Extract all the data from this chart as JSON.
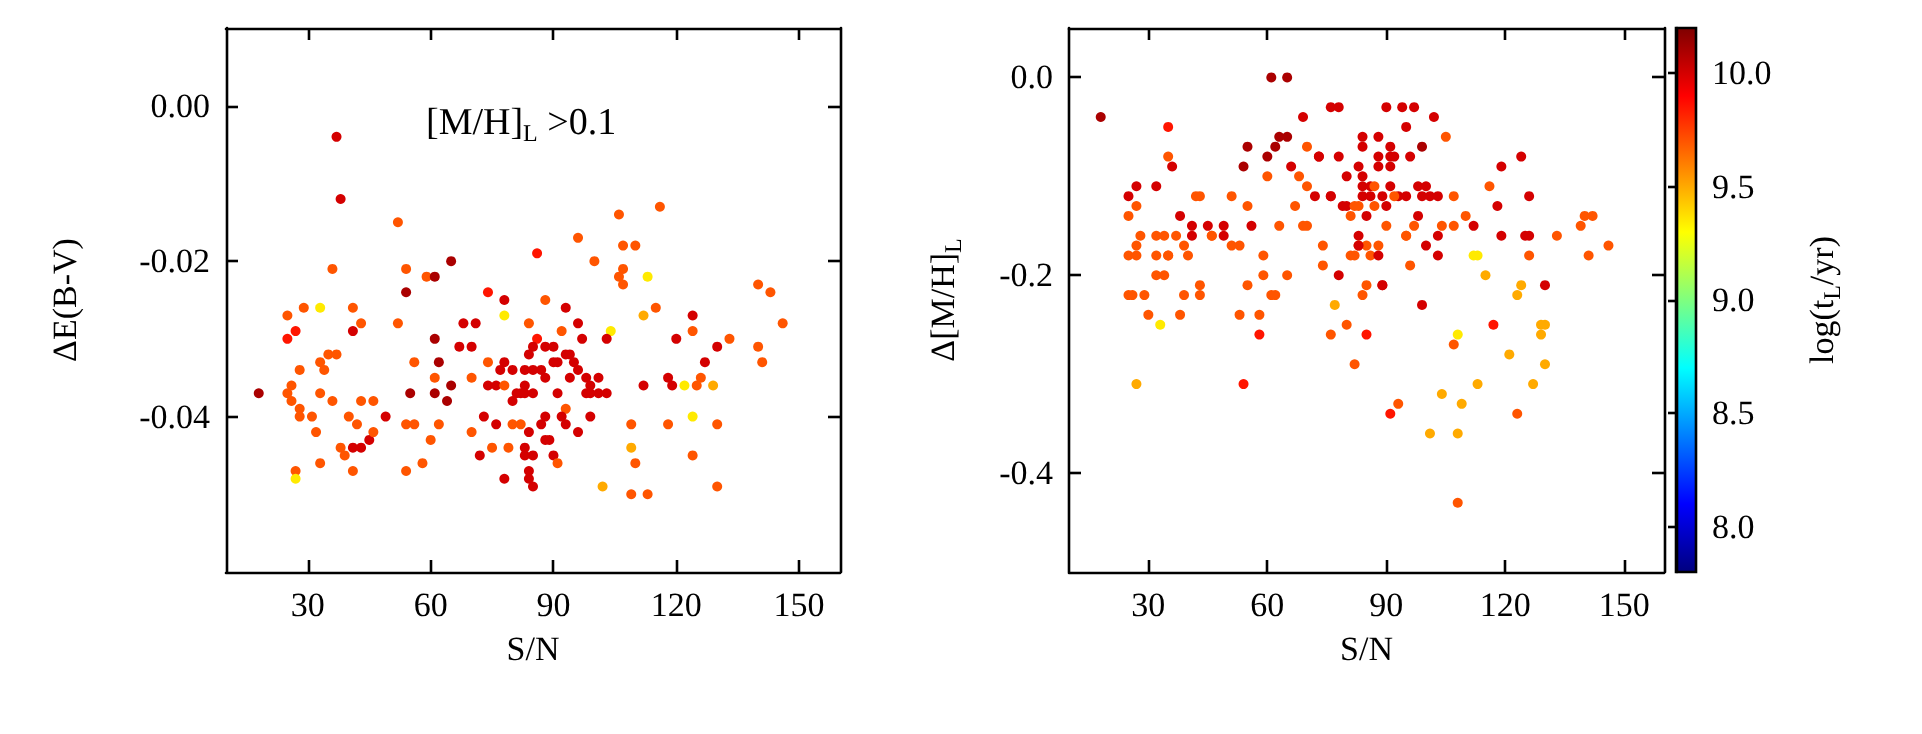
{
  "chart_data": [
    {
      "type": "scatter",
      "xlabel": "S/N",
      "ylabel": "ΔE(B-V)",
      "annotations": [
        "[M/H]$_{L}$ >0.1"
      ],
      "marker": "circle",
      "xlim": [
        10,
        160
      ],
      "xticks": [
        30,
        60,
        90,
        120,
        150
      ],
      "ylim": [
        -0.06,
        0.01
      ],
      "yticks": [
        {
          "value": -0.04,
          "label": "-0.04"
        },
        {
          "value": -0.02,
          "label": "-0.02"
        },
        {
          "value": 0,
          "label": "0.00"
        }
      ],
      "x": [
        37,
        38,
        52,
        36,
        54,
        54,
        59,
        61,
        65,
        86,
        96,
        106,
        116,
        107,
        110,
        100,
        107,
        106,
        113,
        107,
        74,
        78,
        88,
        93,
        115,
        112,
        124,
        140,
        143,
        146,
        133,
        140,
        141,
        130,
        127,
        124,
        120,
        104,
        103,
        25,
        29,
        33,
        41,
        43,
        41,
        25,
        27,
        28,
        33,
        34,
        35,
        37,
        52,
        56,
        61,
        62,
        65,
        64,
        55,
        18,
        26,
        25,
        26,
        28,
        33,
        36,
        28,
        31,
        40,
        42,
        43,
        46,
        49,
        32,
        38,
        39,
        41,
        43,
        45,
        46,
        33,
        41,
        27,
        27,
        54,
        56,
        58,
        54,
        60,
        62,
        61,
        61,
        68,
        71,
        70,
        67,
        74,
        70,
        74,
        76,
        77,
        78,
        80,
        78,
        84,
        86,
        85,
        84,
        88,
        90,
        92,
        96,
        97,
        94,
        91,
        93,
        95,
        83,
        85,
        87,
        88,
        90,
        94,
        96,
        98,
        101,
        99,
        99,
        101,
        103,
        98,
        91,
        93,
        88,
        87,
        92,
        93,
        99,
        81,
        82,
        83,
        85,
        83,
        80,
        78,
        73,
        76,
        80,
        82,
        84,
        70,
        75,
        79,
        83,
        83,
        85,
        72,
        88,
        89,
        90,
        96,
        91,
        84,
        84,
        85,
        78,
        102,
        109,
        109,
        110,
        109,
        113,
        112,
        118,
        119,
        122,
        125,
        126,
        129,
        124,
        130,
        118,
        124,
        130
      ],
      "values": [
        -0.004,
        -0.012,
        -0.015,
        -0.021,
        -0.021,
        -0.024,
        -0.022,
        -0.022,
        -0.02,
        -0.019,
        -0.017,
        -0.014,
        -0.013,
        -0.018,
        -0.018,
        -0.02,
        -0.021,
        -0.022,
        -0.022,
        -0.023,
        -0.024,
        -0.025,
        -0.025,
        -0.026,
        -0.026,
        -0.027,
        -0.027,
        -0.023,
        -0.024,
        -0.028,
        -0.03,
        -0.031,
        -0.033,
        -0.031,
        -0.033,
        -0.029,
        -0.03,
        -0.029,
        -0.03,
        -0.027,
        -0.026,
        -0.026,
        -0.026,
        -0.028,
        -0.029,
        -0.03,
        -0.029,
        -0.034,
        -0.033,
        -0.034,
        -0.032,
        -0.032,
        -0.028,
        -0.033,
        -0.03,
        -0.033,
        -0.036,
        -0.038,
        -0.037,
        -0.037,
        -0.036,
        -0.037,
        -0.038,
        -0.039,
        -0.037,
        -0.038,
        -0.04,
        -0.04,
        -0.04,
        -0.041,
        -0.038,
        -0.038,
        -0.04,
        -0.042,
        -0.044,
        -0.045,
        -0.044,
        -0.044,
        -0.043,
        -0.042,
        -0.046,
        -0.047,
        -0.047,
        -0.048,
        -0.041,
        -0.041,
        -0.046,
        -0.047,
        -0.043,
        -0.041,
        -0.035,
        -0.037,
        -0.028,
        -0.028,
        -0.031,
        -0.031,
        -0.033,
        -0.035,
        -0.036,
        -0.036,
        -0.034,
        -0.033,
        -0.034,
        -0.027,
        -0.028,
        -0.03,
        -0.031,
        -0.032,
        -0.031,
        -0.031,
        -0.029,
        -0.028,
        -0.03,
        -0.032,
        -0.033,
        -0.032,
        -0.033,
        -0.034,
        -0.034,
        -0.034,
        -0.035,
        -0.033,
        -0.035,
        -0.034,
        -0.035,
        -0.035,
        -0.036,
        -0.037,
        -0.037,
        -0.037,
        -0.037,
        -0.037,
        -0.039,
        -0.04,
        -0.041,
        -0.04,
        -0.041,
        -0.04,
        -0.037,
        -0.037,
        -0.037,
        -0.037,
        -0.036,
        -0.038,
        -0.036,
        -0.04,
        -0.041,
        -0.041,
        -0.041,
        -0.042,
        -0.042,
        -0.044,
        -0.044,
        -0.044,
        -0.045,
        -0.045,
        -0.045,
        -0.043,
        -0.043,
        -0.045,
        -0.042,
        -0.046,
        -0.047,
        -0.048,
        -0.049,
        -0.048,
        -0.049,
        -0.041,
        -0.044,
        -0.046,
        -0.05,
        -0.05,
        -0.036,
        -0.035,
        -0.036,
        -0.036,
        -0.036,
        -0.035,
        -0.036,
        -0.04,
        -0.041,
        -0.041,
        -0.045,
        -0.049
      ],
      "colors": [
        "#d40000",
        "#d40000",
        "#ff5500",
        "#ff5500",
        "#ff5500",
        "#aa0000",
        "#ff5500",
        "#aa0000",
        "#aa0000",
        "#ff1500",
        "#ff5500",
        "#ff5500",
        "#ff5500",
        "#ff5500",
        "#ff5500",
        "#ff5500",
        "#ff5500",
        "#ff5500",
        "#ffea00",
        "#ff5500",
        "#ff1500",
        "#d40000",
        "#ff5500",
        "#d40000",
        "#ff5500",
        "#ffaa00",
        "#d40000",
        "#ff5500",
        "#ff5500",
        "#ff5500",
        "#ff5500",
        "#ff5500",
        "#ff5500",
        "#d40000",
        "#d40000",
        "#ff5500",
        "#d40000",
        "#ffea00",
        "#d40000",
        "#ff5500",
        "#ff5500",
        "#ffea00",
        "#ff5500",
        "#ff5500",
        "#d40000",
        "#ff1500",
        "#ff1500",
        "#ff5500",
        "#ff5500",
        "#ff5500",
        "#ff5500",
        "#ff5500",
        "#ff5500",
        "#ff5500",
        "#aa0000",
        "#aa0000",
        "#aa0000",
        "#aa0000",
        "#aa0000",
        "#aa0000",
        "#ff5500",
        "#ff5500",
        "#ff5500",
        "#ff5500",
        "#ff5500",
        "#ff5500",
        "#ff5500",
        "#ff5500",
        "#ff5500",
        "#ff5500",
        "#ff5500",
        "#ff5500",
        "#d40000",
        "#ff5500",
        "#ff5500",
        "#ff5500",
        "#d40000",
        "#d40000",
        "#d40000",
        "#ff5500",
        "#ff5500",
        "#ff5500",
        "#ff5500",
        "#ffea00",
        "#ff5500",
        "#ff5500",
        "#ff5500",
        "#ff5500",
        "#ff5500",
        "#ff5500",
        "#ff5500",
        "#aa0000",
        "#d40000",
        "#d40000",
        "#d40000",
        "#d40000",
        "#ff5500",
        "#ff5500",
        "#d40000",
        "#d40000",
        "#d40000",
        "#d40000",
        "#d40000",
        "#ffea00",
        "#ff5500",
        "#ff1500",
        "#d40000",
        "#d40000",
        "#d40000",
        "#d40000",
        "#ff5500",
        "#d40000",
        "#d40000",
        "#d40000",
        "#d40000",
        "#d40000",
        "#d40000",
        "#d40000",
        "#d40000",
        "#d40000",
        "#d40000",
        "#d40000",
        "#d40000",
        "#d40000",
        "#d40000",
        "#d40000",
        "#d40000",
        "#d40000",
        "#d40000",
        "#d40000",
        "#d40000",
        "#d40000",
        "#ff5500",
        "#d40000",
        "#d40000",
        "#d40000",
        "#d40000",
        "#d40000",
        "#d40000",
        "#d40000",
        "#d40000",
        "#d40000",
        "#d40000",
        "#d40000",
        "#ff5500",
        "#d40000",
        "#d40000",
        "#ff5500",
        "#ff5500",
        "#d40000",
        "#ff5500",
        "#ff5500",
        "#ff5500",
        "#d40000",
        "#d40000",
        "#d40000",
        "#d40000",
        "#d40000",
        "#d40000",
        "#d40000",
        "#d40000",
        "#ff5500",
        "#d40000",
        "#d40000",
        "#d40000",
        "#d40000",
        "#ffaa00",
        "#ff5500",
        "#ffaa00",
        "#ff5500",
        "#ff5500",
        "#ff5500",
        "#d40000",
        "#d40000",
        "#d40000",
        "#ffea00",
        "#ff5500",
        "#ff5500",
        "#ffaa00",
        "#ffea00",
        "#ff5500",
        "#ff5500",
        "#ff5500",
        "#ff5500"
      ]
    },
    {
      "type": "scatter",
      "xlabel": "S/N",
      "ylabel": "Δ[M/H]$_{L}$",
      "clabel": "log(t$_{L}$/yr)",
      "marker": "circle",
      "xlim": [
        10,
        160
      ],
      "xticks": [
        30,
        60,
        90,
        120,
        150
      ],
      "ylim": [
        -0.5,
        0.05
      ],
      "yticks": [
        {
          "value": -0.4,
          "label": "-0.4"
        },
        {
          "value": -0.2,
          "label": "-0.2"
        },
        {
          "value": 0,
          "label": "0.0"
        }
      ],
      "clim": [
        7.8,
        10.2
      ],
      "cticks": [
        {
          "value": 8,
          "label": "8.0"
        },
        8.5,
        {
          "value": 9,
          "label": "9.0"
        },
        9.5,
        {
          "value": 10,
          "label": "10.0"
        }
      ],
      "x": [
        18,
        25,
        27,
        25,
        27,
        25,
        27,
        28,
        27,
        25,
        26,
        29,
        27,
        30,
        33,
        32,
        34,
        32,
        35,
        35,
        36,
        32,
        34,
        35,
        35,
        32,
        37,
        39,
        40,
        41,
        38,
        41,
        42,
        43,
        39,
        38,
        43,
        43,
        45,
        46,
        46,
        49,
        49,
        51,
        51,
        53,
        55,
        54,
        55,
        56,
        53,
        55,
        54,
        58,
        58,
        59,
        59,
        60,
        60,
        62,
        61,
        65,
        63,
        65,
        61,
        62,
        65,
        63,
        67,
        66,
        68,
        69,
        70,
        69,
        70,
        70,
        72,
        73,
        73,
        74,
        74,
        76,
        76,
        76,
        78,
        78,
        78,
        76,
        77,
        80,
        80,
        79,
        80,
        81,
        81,
        82,
        82,
        83,
        82,
        83,
        83,
        84,
        84,
        84,
        85,
        83,
        83,
        85,
        84,
        86,
        84,
        84,
        85,
        85,
        86,
        87,
        86,
        87,
        88,
        88,
        88,
        88,
        88,
        89,
        89,
        89,
        90,
        90,
        90,
        91,
        91,
        91,
        91,
        92,
        93,
        92,
        91,
        93,
        94,
        95,
        95,
        95,
        95,
        96,
        96,
        97,
        97,
        98,
        98,
        99,
        99,
        100,
        99,
        100,
        101,
        102,
        103,
        103,
        103,
        105,
        104,
        101,
        104,
        107,
        107,
        107,
        108,
        109,
        108,
        108,
        110,
        112,
        113,
        112,
        113,
        115,
        116,
        118,
        117,
        119,
        119,
        121,
        123,
        124,
        123,
        124,
        125,
        126,
        126,
        126,
        130,
        130,
        129,
        129,
        130,
        127,
        133,
        139,
        140,
        142,
        141,
        146
      ],
      "values": [
        -0.04,
        -0.12,
        -0.11,
        -0.14,
        -0.13,
        -0.18,
        -0.17,
        -0.16,
        -0.18,
        -0.22,
        -0.22,
        -0.22,
        -0.31,
        -0.24,
        -0.25,
        -0.2,
        -0.2,
        -0.11,
        -0.05,
        -0.08,
        -0.09,
        -0.16,
        -0.16,
        -0.18,
        -0.18,
        -0.18,
        -0.16,
        -0.17,
        -0.18,
        -0.16,
        -0.14,
        -0.15,
        -0.12,
        -0.12,
        -0.22,
        -0.24,
        -0.21,
        -0.22,
        -0.15,
        -0.16,
        -0.16,
        -0.16,
        -0.15,
        -0.12,
        -0.17,
        -0.17,
        -0.07,
        -0.09,
        -0.13,
        -0.15,
        -0.24,
        -0.21,
        -0.31,
        -0.24,
        -0.26,
        -0.2,
        -0.18,
        -0.1,
        -0.08,
        -0.07,
        0,
        0,
        -0.06,
        -0.06,
        -0.22,
        -0.22,
        -0.2,
        -0.15,
        -0.13,
        -0.09,
        -0.1,
        -0.04,
        -0.07,
        -0.15,
        -0.15,
        -0.11,
        -0.12,
        -0.08,
        -0.08,
        -0.17,
        -0.19,
        -0.12,
        -0.12,
        -0.03,
        -0.03,
        -0.08,
        -0.2,
        -0.26,
        -0.23,
        -0.25,
        -0.1,
        -0.13,
        -0.13,
        -0.14,
        -0.18,
        -0.18,
        -0.13,
        -0.13,
        -0.29,
        -0.16,
        -0.09,
        -0.1,
        -0.06,
        -0.07,
        -0.17,
        -0.17,
        -0.17,
        -0.14,
        -0.11,
        -0.11,
        -0.12,
        -0.22,
        -0.26,
        -0.21,
        -0.18,
        -0.13,
        -0.12,
        -0.11,
        -0.09,
        -0.06,
        -0.08,
        -0.17,
        -0.18,
        -0.12,
        -0.21,
        -0.21,
        -0.15,
        -0.13,
        -0.03,
        -0.07,
        -0.08,
        -0.09,
        -0.11,
        -0.08,
        -0.12,
        -0.12,
        -0.34,
        -0.33,
        -0.03,
        -0.12,
        -0.16,
        -0.16,
        -0.05,
        -0.08,
        -0.19,
        -0.15,
        -0.03,
        -0.11,
        -0.14,
        -0.07,
        -0.12,
        -0.17,
        -0.23,
        -0.11,
        -0.12,
        -0.04,
        -0.18,
        -0.12,
        -0.16,
        -0.06,
        -0.15,
        -0.36,
        -0.32,
        -0.15,
        -0.12,
        -0.27,
        -0.26,
        -0.33,
        -0.36,
        -0.43,
        -0.14,
        -0.18,
        -0.18,
        -0.15,
        -0.31,
        -0.2,
        -0.11,
        -0.13,
        -0.25,
        -0.16,
        -0.09,
        -0.28,
        -0.22,
        -0.21,
        -0.34,
        -0.08,
        -0.16,
        -0.16,
        -0.12,
        -0.18,
        -0.21,
        -0.25,
        -0.25,
        -0.26,
        -0.29,
        -0.31,
        -0.16,
        -0.15,
        -0.14,
        -0.14,
        -0.18,
        -0.17
      ],
      "cvalues": [
        10.1,
        10.0,
        10.0,
        9.7,
        9.7,
        9.7,
        9.7,
        9.7,
        9.7,
        9.7,
        9.7,
        9.7,
        9.5,
        9.7,
        9.35,
        9.7,
        9.7,
        10.0,
        9.85,
        9.7,
        10.0,
        9.7,
        9.7,
        9.7,
        9.7,
        9.7,
        9.7,
        9.7,
        9.7,
        10.0,
        10.0,
        10.0,
        9.7,
        9.7,
        9.7,
        9.7,
        9.7,
        9.7,
        10.0,
        9.7,
        9.7,
        10.0,
        10.0,
        9.7,
        9.7,
        9.7,
        10.1,
        10.1,
        9.7,
        10.0,
        9.7,
        9.7,
        9.85,
        9.7,
        9.85,
        9.7,
        9.7,
        9.7,
        10.1,
        10.1,
        10.1,
        10.1,
        10.1,
        10.1,
        9.7,
        9.7,
        9.7,
        9.7,
        9.7,
        10.0,
        9.7,
        10.0,
        9.7,
        9.7,
        9.7,
        9.7,
        10.0,
        10.0,
        10.0,
        9.7,
        9.7,
        10.0,
        10.0,
        10.0,
        10.0,
        10.0,
        10.0,
        9.7,
        9.5,
        9.7,
        10.0,
        10.0,
        10.0,
        9.7,
        9.7,
        9.7,
        9.7,
        9.7,
        9.7,
        10.0,
        10.0,
        10.0,
        10.0,
        10.0,
        9.7,
        9.7,
        10.0,
        10.0,
        10.0,
        10.0,
        10.0,
        9.7,
        9.85,
        9.7,
        9.7,
        9.7,
        10.0,
        9.7,
        10.0,
        10.0,
        10.0,
        9.7,
        10.0,
        10.0,
        10.0,
        10.0,
        9.7,
        10.0,
        10.0,
        10.0,
        10.0,
        10.0,
        10.0,
        10.0,
        10.0,
        9.7,
        9.85,
        9.7,
        10.0,
        10.0,
        9.7,
        9.7,
        10.0,
        10.0,
        9.7,
        9.7,
        10.0,
        10.0,
        10.0,
        10.1,
        10.0,
        10.0,
        10.0,
        10.0,
        10.0,
        10.0,
        10.0,
        10.0,
        10.0,
        9.7,
        9.7,
        9.5,
        9.5,
        9.7,
        9.7,
        9.7,
        9.35,
        9.5,
        9.5,
        9.7,
        9.7,
        9.35,
        9.35,
        10.0,
        9.5,
        9.5,
        9.7,
        10.0,
        9.85,
        10.0,
        10.0,
        9.5,
        9.5,
        9.5,
        9.7,
        10.0,
        10.0,
        10.0,
        10.0,
        9.7,
        10.0,
        9.5,
        9.5,
        9.5,
        9.5,
        9.5,
        9.7,
        9.7,
        9.7,
        9.7,
        9.7,
        9.7
      ]
    }
  ]
}
